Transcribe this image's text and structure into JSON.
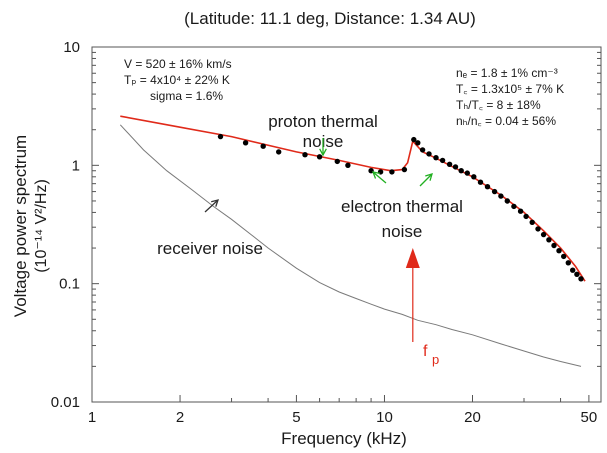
{
  "chart_data": {
    "type": "scatter",
    "title": "(Latitude: 11.1 deg, Distance: 1.34 AU)",
    "xlabel": "Frequency (kHz)",
    "ylabel_line1": "Voltage power spectrum",
    "ylabel_line2": "(10⁻¹⁴ V²/Hz)",
    "x_scale": "log",
    "y_scale": "log",
    "xlim": [
      1,
      55
    ],
    "ylim": [
      0.01,
      10
    ],
    "x_ticks": [
      1,
      2,
      5,
      10,
      20,
      50
    ],
    "x_tick_labels": [
      "1",
      "2",
      "5",
      "10",
      "20",
      "50"
    ],
    "y_ticks": [
      0.01,
      0.1,
      1,
      10
    ],
    "y_tick_labels": [
      "0.01",
      "0.1",
      "1",
      "10"
    ],
    "grid": false,
    "colors": {
      "fit": "#e02a1a",
      "measured": "#000000",
      "receiver": "#777777",
      "annotation_green": "#22b022",
      "fp_marker": "#e02a1a"
    },
    "series": [
      {
        "kind": "markers",
        "x": [
          2.75,
          3.35,
          3.85,
          4.35,
          5.35,
          6.0,
          6.9,
          7.5,
          9.0,
          9.7,
          10.6,
          11.7,
          12.6,
          13.0,
          13.5,
          14.2,
          15.0,
          15.8,
          16.7,
          17.5,
          18.3,
          19.2,
          20.2,
          21.3,
          22.5,
          23.8,
          25.0,
          26.3,
          27.7,
          29.2,
          30.5,
          32.0,
          33.5,
          35.0,
          36.5,
          38.0,
          39.5,
          41.0,
          42.5,
          44.0,
          45.5,
          47.0
        ],
        "y": [
          1.75,
          1.55,
          1.45,
          1.3,
          1.23,
          1.18,
          1.08,
          1.0,
          0.9,
          0.88,
          0.88,
          0.92,
          1.65,
          1.55,
          1.35,
          1.25,
          1.16,
          1.1,
          1.02,
          0.97,
          0.9,
          0.86,
          0.8,
          0.72,
          0.66,
          0.6,
          0.55,
          0.5,
          0.45,
          0.41,
          0.37,
          0.33,
          0.29,
          0.26,
          0.235,
          0.21,
          0.19,
          0.17,
          0.15,
          0.13,
          0.12,
          0.11
        ]
      },
      {
        "kind": "fit",
        "x": [
          1.25,
          2.0,
          3.0,
          5.0,
          7.0,
          9.0,
          10.5,
          11.5,
          12.0,
          12.5,
          13.5,
          15.0,
          17.0,
          20.0,
          25.0,
          30.0,
          35.0,
          40.0,
          45.0,
          48.5
        ],
        "y": [
          2.6,
          2.1,
          1.75,
          1.3,
          1.1,
          0.96,
          0.9,
          0.92,
          1.05,
          1.6,
          1.3,
          1.15,
          0.98,
          0.8,
          0.56,
          0.4,
          0.28,
          0.2,
          0.14,
          0.105
        ]
      },
      {
        "kind": "receiver",
        "x": [
          1.25,
          1.5,
          1.8,
          2.2,
          2.6,
          3.0,
          3.5,
          4.0,
          5.0,
          6.0,
          7.0,
          8.0,
          9.0,
          10.0,
          11.5,
          13.0,
          15.0,
          17.0,
          20.0,
          25.0,
          30.0,
          35.0,
          40.0,
          47.0
        ],
        "y": [
          2.2,
          1.35,
          0.9,
          0.62,
          0.45,
          0.35,
          0.26,
          0.2,
          0.135,
          0.102,
          0.085,
          0.075,
          0.067,
          0.061,
          0.055,
          0.049,
          0.045,
          0.041,
          0.037,
          0.031,
          0.027,
          0.024,
          0.022,
          0.02
        ]
      }
    ],
    "annotations": {
      "params_left": [
        "V = 520 ± 16% km/s",
        "Tₚ = 4x10⁴ ± 22% K",
        "sigma = 1.6%"
      ],
      "params_right": [
        "nₑ = 1.8 ± 1% cm⁻³",
        "T꜀ = 1.3x10⁵ ± 7% K",
        "Tₕ/T꜀ = 8 ± 18%",
        "nₕ/n꜀ = 0.04 ± 56%"
      ],
      "proton_line1": "proton thermal",
      "proton_line2": "noise",
      "electron_line1": "electron thermal",
      "electron_line2": "noise",
      "receiver": "receiver noise",
      "fp_f": "f",
      "fp_p": "p",
      "fp_freq": 12.5
    }
  }
}
